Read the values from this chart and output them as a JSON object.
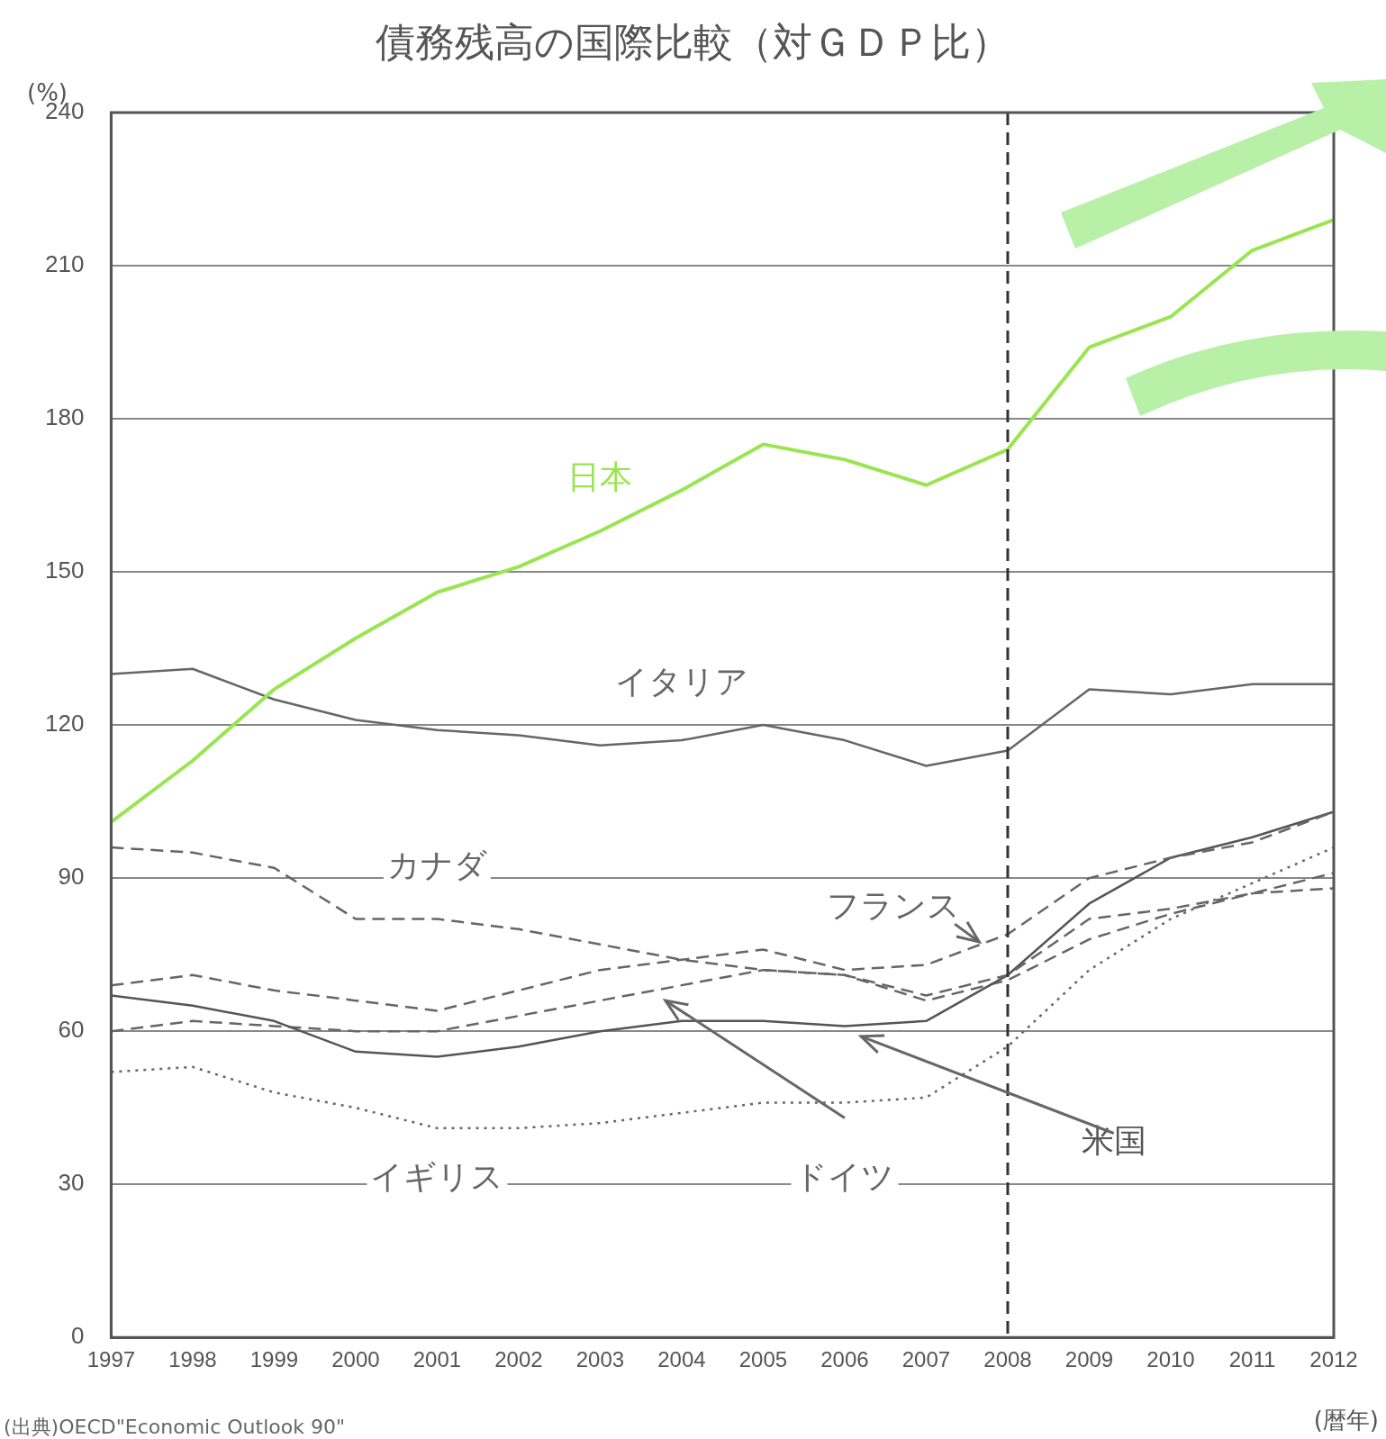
{
  "chart_data": {
    "type": "line",
    "title": "債務残高の国際比較（対ＧＤＰ比）",
    "ylabel": "(%)",
    "xlabel": "(暦年)",
    "categories": [
      "1997",
      "1998",
      "1999",
      "2000",
      "2001",
      "2002",
      "2003",
      "2004",
      "2005",
      "2006",
      "2007",
      "2008",
      "2009",
      "2010",
      "2011",
      "2012"
    ],
    "series": [
      {
        "name": "日本",
        "color": "#99e550",
        "line_style": "solid",
        "values": [
          101,
          113,
          127,
          137,
          146,
          151,
          158,
          166,
          175,
          172,
          167,
          174,
          194,
          200,
          213,
          219
        ]
      },
      {
        "name": "イタリア",
        "color": "#666666",
        "line_style": "solid",
        "values": [
          130,
          131,
          125,
          121,
          119,
          118,
          116,
          117,
          120,
          117,
          112,
          115,
          127,
          126,
          128,
          128
        ]
      },
      {
        "name": "カナダ",
        "color": "#666666",
        "line_style": "dashed",
        "values": [
          96,
          95,
          92,
          82,
          82,
          80,
          77,
          74,
          72,
          71,
          67,
          71,
          82,
          84,
          87,
          91
        ]
      },
      {
        "name": "フランス",
        "color": "#666666",
        "line_style": "dashed",
        "values": [
          69,
          71,
          68,
          66,
          64,
          68,
          72,
          74,
          76,
          72,
          73,
          79,
          90,
          94,
          97,
          103
        ]
      },
      {
        "name": "米国",
        "color": "#555555",
        "line_style": "solid",
        "values": [
          67,
          65,
          62,
          56,
          55,
          57,
          60,
          62,
          62,
          61,
          62,
          71,
          85,
          94,
          98,
          103
        ]
      },
      {
        "name": "ドイツ",
        "color": "#666666",
        "line_style": "dashed",
        "values": [
          60,
          62,
          61,
          60,
          60,
          63,
          66,
          69,
          72,
          71,
          66,
          70,
          78,
          83,
          87,
          88
        ]
      },
      {
        "name": "イギリス",
        "color": "#666666",
        "line_style": "dotted",
        "values": [
          52,
          53,
          48,
          45,
          41,
          41,
          42,
          44,
          46,
          46,
          47,
          57,
          72,
          82,
          89,
          96
        ]
      }
    ],
    "ylim": [
      0,
      240
    ],
    "yticks": [
      0,
      30,
      60,
      90,
      120,
      150,
      180,
      210,
      240
    ],
    "grid": "y",
    "legend": false,
    "marker": "none",
    "ref_lines": [
      {
        "axis": "x",
        "value": "2008",
        "line_style": "dashed",
        "color": "#333333"
      }
    ],
    "annotations": [
      "(出典)OECD\"Economic Outlook 90\""
    ]
  }
}
